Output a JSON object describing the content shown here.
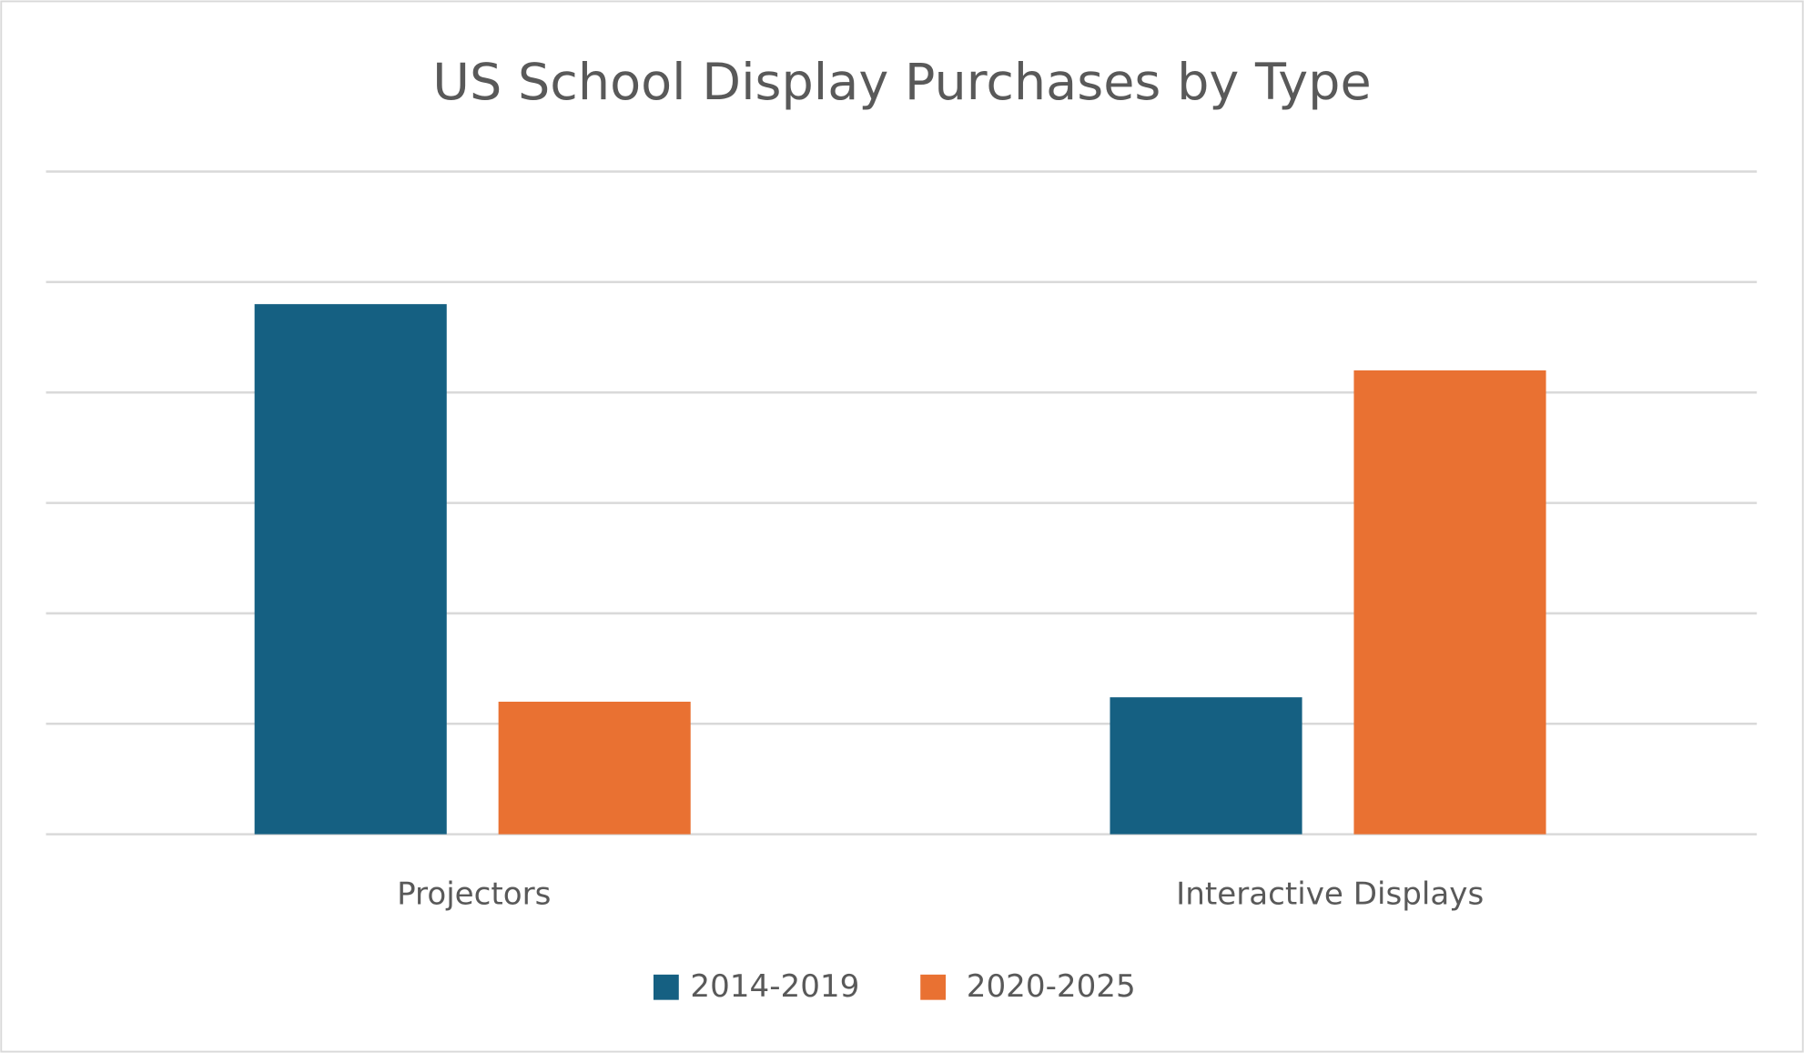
{
  "chart_data": {
    "type": "bar",
    "title": "US School Display Purchases by Type",
    "xlabel": "",
    "ylabel": "",
    "categories": [
      "Projectors",
      "Interactive Displays"
    ],
    "series": [
      {
        "name": "2014-2019",
        "color": "#156082",
        "values": [
          4.8,
          1.24
        ]
      },
      {
        "name": "2020-2025",
        "color": "#E97132",
        "values": [
          1.2,
          4.2
        ]
      }
    ],
    "ylim": [
      0,
      6
    ],
    "y_tick_labels_shown": false,
    "grid": true,
    "legend_placement": "bottom"
  }
}
